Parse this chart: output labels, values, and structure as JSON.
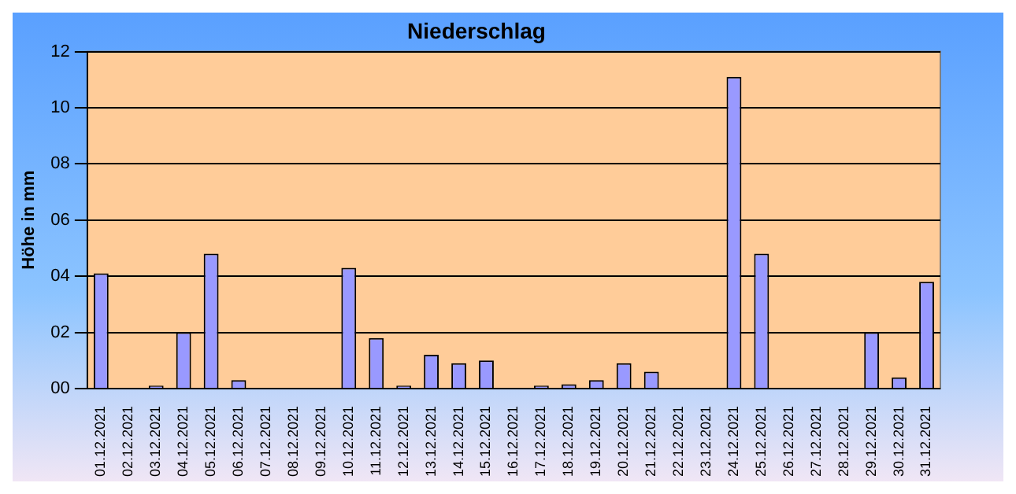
{
  "chart_data": {
    "type": "bar",
    "title": "Niederschlag",
    "ylabel": "Höhe in mm",
    "categories": [
      "01.12.2021",
      "02.12.2021",
      "03.12.2021",
      "04.12.2021",
      "05.12.2021",
      "06.12.2021",
      "07.12.2021",
      "08.12.2021",
      "09.12.2021",
      "10.12.2021",
      "11.12.2021",
      "12.12.2021",
      "13.12.2021",
      "14.12.2021",
      "15.12.2021",
      "16.12.2021",
      "17.12.2021",
      "18.12.2021",
      "19.12.2021",
      "20.12.2021",
      "21.12.2021",
      "22.12.2021",
      "23.12.2021",
      "24.12.2021",
      "25.12.2021",
      "26.12.2021",
      "27.12.2021",
      "28.12.2021",
      "29.12.2021",
      "30.12.2021",
      "31.12.2021"
    ],
    "values": [
      4.1,
      0,
      0.1,
      2.0,
      4.8,
      0.3,
      0,
      0,
      0,
      4.3,
      1.8,
      0.1,
      1.2,
      0.9,
      1.0,
      0,
      0.1,
      0.15,
      0.3,
      0.9,
      0.6,
      0,
      0,
      11.1,
      4.8,
      0,
      0,
      0,
      2.0,
      0.4,
      3.8
    ],
    "color": "#9999ff",
    "ylim": [
      0,
      12
    ],
    "yticks": [
      {
        "value": 0,
        "label": "00"
      },
      {
        "value": 2,
        "label": "02"
      },
      {
        "value": 4,
        "label": "04"
      },
      {
        "value": 6,
        "label": "06"
      },
      {
        "value": 8,
        "label": "08"
      },
      10,
      12
    ],
    "grid": "y",
    "legend": false
  }
}
